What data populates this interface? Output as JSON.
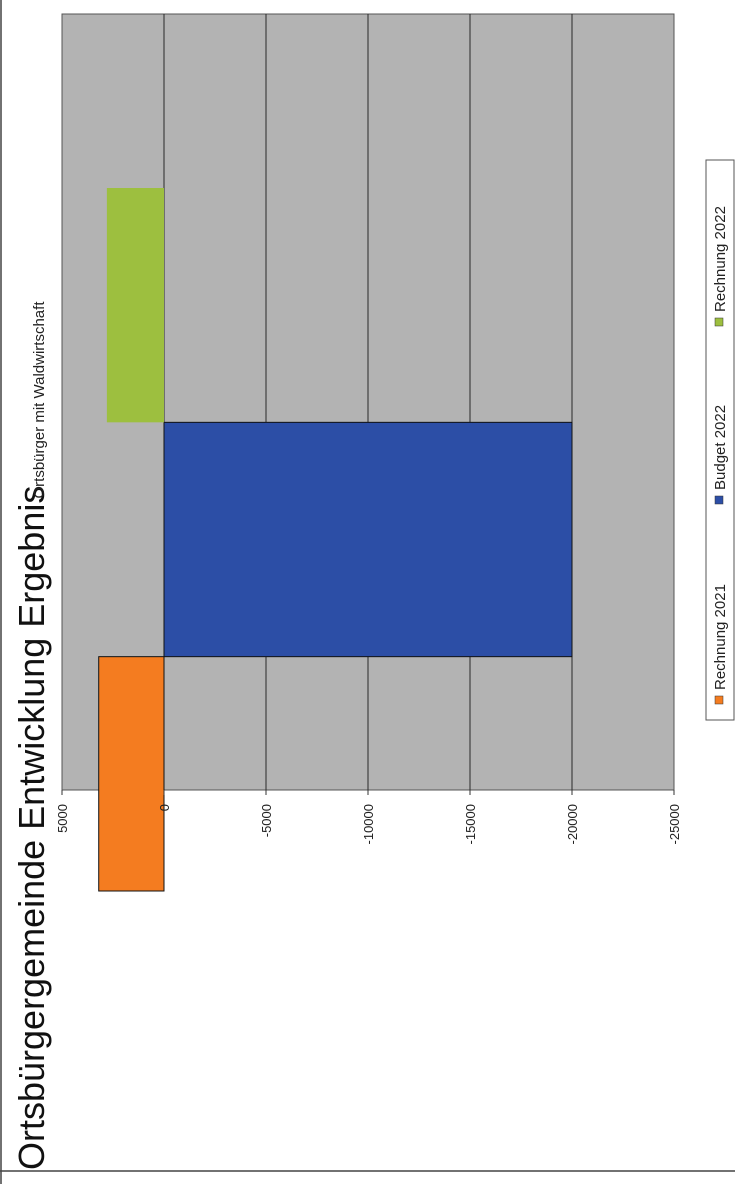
{
  "page": {
    "heading": "Ortsbürgergemeinde Entwicklung Ergebnis"
  },
  "chart_data": {
    "type": "bar",
    "orientation": "horizontal-rotated",
    "title": "Ortsbürger mit Waldwirtschaft",
    "categories": [
      "Ortsbürger mit Waldwirtschaft"
    ],
    "series": [
      {
        "name": "Rechnung 2021",
        "values": [
          3200
        ],
        "color": "#f47c20"
      },
      {
        "name": "Budget 2022",
        "values": [
          -20000
        ],
        "color": "#2c4ea6"
      },
      {
        "name": "Rechnung 2022",
        "values": [
          2800
        ],
        "color": "#9dbf3f"
      }
    ],
    "axis": {
      "min": -25000,
      "max": 5000,
      "step": 5000,
      "tick_labels": [
        "5000",
        "0",
        "-5000",
        "-10000",
        "-15000",
        "-20000",
        "-25000"
      ]
    },
    "grid": true,
    "plot_background": "#b3b3b3",
    "legend_position": "right"
  }
}
